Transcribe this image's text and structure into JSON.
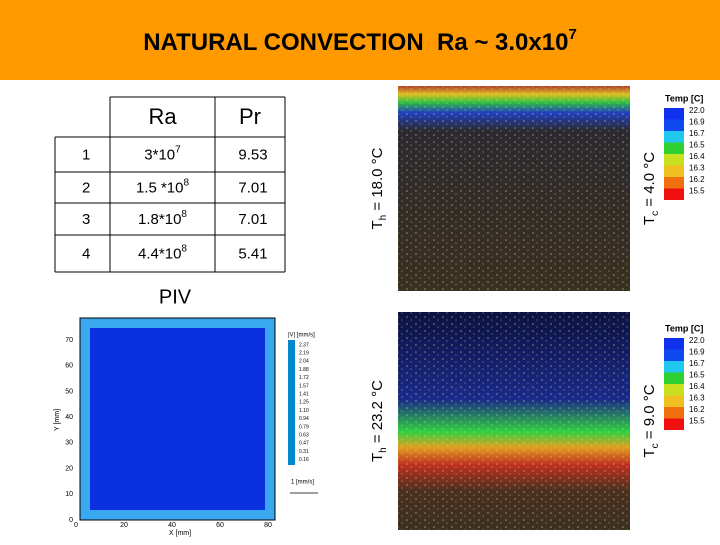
{
  "header": {
    "title": {
      "text": "NATURAL CONVECTION  Ra ~ 3.0x10",
      "exp": "7"
    }
  },
  "table": {
    "header": [
      "Ra",
      "Pr"
    ],
    "rows": [
      [
        "1",
        {
          "base": "3*10",
          "exp": "7"
        },
        "9.53"
      ],
      [
        "2",
        {
          "base": "1.5 *10",
          "exp": "8"
        },
        "7.01"
      ],
      [
        "3",
        {
          "base": "1.8*10",
          "exp": "8"
        },
        "7.01"
      ],
      [
        "4",
        {
          "base": "4.4*10",
          "exp": "8"
        },
        "5.41"
      ]
    ]
  },
  "piv": {
    "label": "PIV",
    "x_axis_label": "X [mm]",
    "y_axis_label": "Y [mm]",
    "x_ticks": [
      "0",
      "20",
      "40",
      "60",
      "80"
    ],
    "y_ticks": [
      "0",
      "10",
      "20",
      "30",
      "40",
      "50",
      "60",
      "70"
    ],
    "colorbar_title": "|V| [mm/s]",
    "colorbar_labels": [
      "2.37",
      "2.19",
      "2.04",
      "1.88",
      "1.72",
      "1.57",
      "1.41",
      "1.25",
      "1.10",
      "0.94",
      "0.79",
      "0.63",
      "0.47",
      "0.31",
      "0.16"
    ],
    "reference_vector": "1 [mm/s]"
  },
  "experiments": [
    {
      "hot_label": {
        "t": "T",
        "sub": "h",
        "rest": " = 18.0 °C"
      },
      "cold_label": {
        "t": "T",
        "sub": "c",
        "rest": " = 4.0 °C"
      },
      "colorbar_title": "Temp [C]",
      "colorbar_labels": [
        "22.0",
        "16.9",
        "16.7",
        "16.5",
        "16.4",
        "16.3",
        "16.2",
        "15.5"
      ]
    },
    {
      "hot_label": {
        "t": "T",
        "sub": "h",
        "rest": " = 23.2 °C"
      },
      "cold_label": {
        "t": "T",
        "sub": "c",
        "rest": " = 9.0 °C"
      },
      "colorbar_title": "Temp [C]",
      "colorbar_labels": [
        "22.0",
        "16.9",
        "16.7",
        "16.5",
        "16.4",
        "16.3",
        "16.2",
        "15.5"
      ]
    }
  ]
}
